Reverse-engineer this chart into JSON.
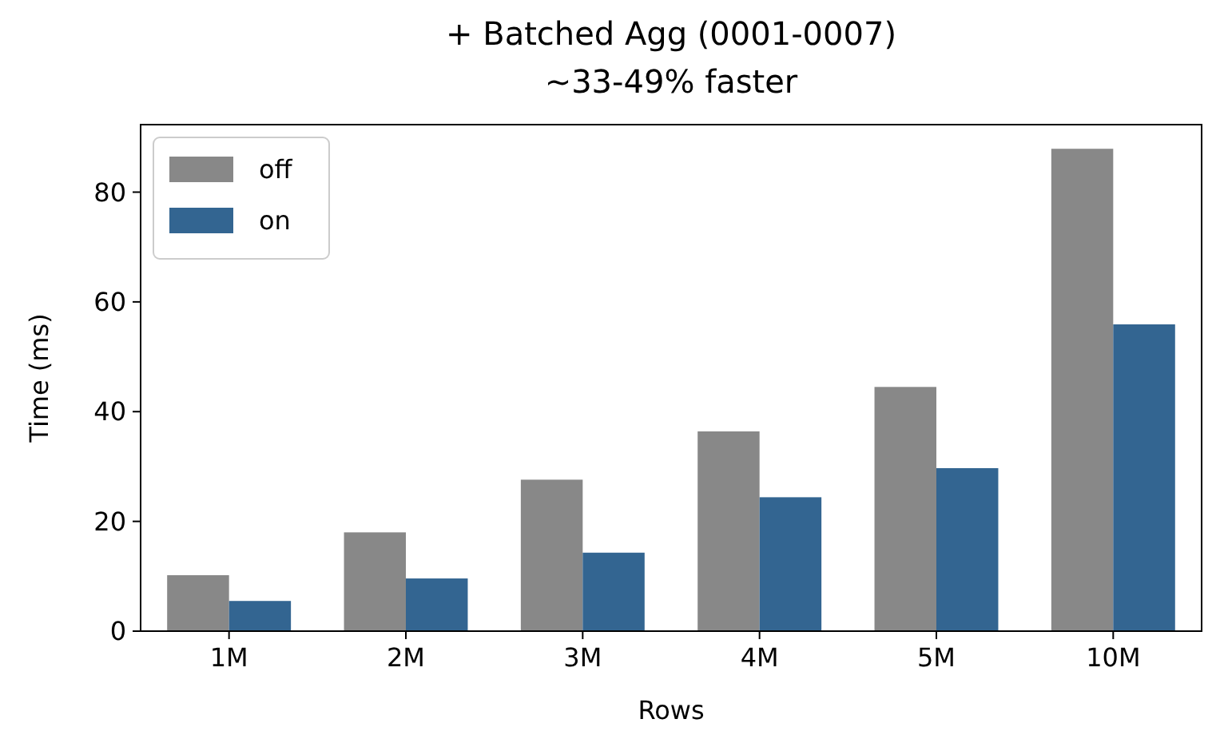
{
  "chart_data": {
    "type": "bar",
    "title": "+ Batched Agg (0001-0007)",
    "subtitle": "~33-49% faster",
    "xlabel": "Rows",
    "ylabel": "Time (ms)",
    "categories": [
      "1M",
      "2M",
      "3M",
      "4M",
      "5M",
      "10M"
    ],
    "series": [
      {
        "name": "off",
        "color": "#888888",
        "values": [
          10.2,
          18,
          27.6,
          36.4,
          44.5,
          87.9
        ]
      },
      {
        "name": "on",
        "color": "#336591",
        "values": [
          5.5,
          9.6,
          14.3,
          24.4,
          29.7,
          55.9
        ]
      }
    ],
    "ylim": [
      0,
      92.3
    ],
    "yticks": [
      0,
      20,
      40,
      60,
      80
    ],
    "legend": "top left"
  }
}
